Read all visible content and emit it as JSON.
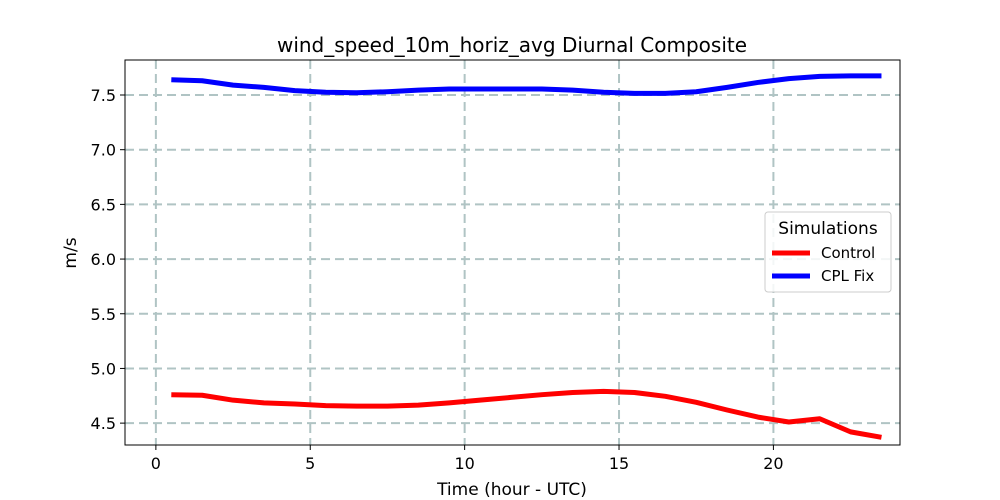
{
  "chart_data": {
    "type": "line",
    "title": "wind_speed_10m_horiz_avg Diurnal Composite",
    "xlabel": "Time (hour - UTC)",
    "ylabel": "m/s",
    "xlim": [
      -1.0,
      24.1
    ],
    "ylim": [
      4.3,
      7.82
    ],
    "xticks": [
      0,
      5,
      10,
      15,
      20
    ],
    "yticks": [
      4.5,
      5.0,
      5.5,
      6.0,
      6.5,
      7.0,
      7.5
    ],
    "xtick_labels": [
      "0",
      "5",
      "10",
      "15",
      "20"
    ],
    "ytick_labels": [
      "4.5",
      "5.0",
      "5.5",
      "6.0",
      "6.5",
      "7.0",
      "7.5"
    ],
    "grid": true,
    "legend": {
      "title": "Simulations",
      "placement": "center-right"
    },
    "x": [
      0.5,
      1.5,
      2.5,
      3.5,
      4.5,
      5.5,
      6.5,
      7.5,
      8.5,
      9.5,
      10.5,
      11.5,
      12.5,
      13.5,
      14.5,
      15.5,
      16.5,
      17.5,
      18.5,
      19.5,
      20.5,
      21.5,
      22.5,
      23.5
    ],
    "series": [
      {
        "name": "Control",
        "color": "#ff0000",
        "values": [
          4.76,
          4.755,
          4.71,
          4.685,
          4.675,
          4.66,
          4.655,
          4.655,
          4.665,
          4.685,
          4.71,
          4.735,
          4.76,
          4.78,
          4.79,
          4.78,
          4.745,
          4.69,
          4.62,
          4.555,
          4.51,
          4.54,
          4.42,
          4.37
        ]
      },
      {
        "name": "CPL Fix",
        "color": "#0000ff",
        "values": [
          7.64,
          7.63,
          7.59,
          7.57,
          7.54,
          7.525,
          7.52,
          7.53,
          7.545,
          7.555,
          7.555,
          7.555,
          7.555,
          7.545,
          7.525,
          7.515,
          7.515,
          7.53,
          7.57,
          7.615,
          7.65,
          7.67,
          7.675,
          7.675
        ]
      }
    ]
  }
}
